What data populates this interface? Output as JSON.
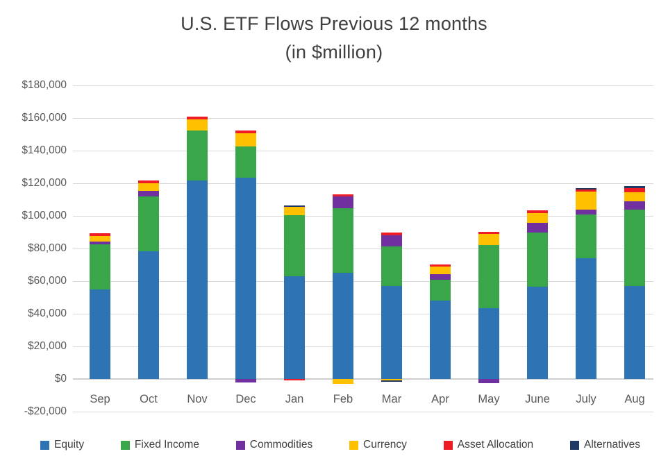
{
  "title": {
    "line1": "U.S. ETF Flows Previous 12 months",
    "line2": "(in $million)"
  },
  "chart_data": {
    "type": "bar",
    "stacked": true,
    "title": "U.S. ETF Flows Previous 12 months (in $million)",
    "categories": [
      "Sep",
      "Oct",
      "Nov",
      "Dec",
      "Jan",
      "Feb",
      "Mar",
      "Apr",
      "May",
      "June",
      "July",
      "Aug"
    ],
    "series": [
      {
        "name": "Equity",
        "color": "#2E74B5",
        "values": [
          55000,
          78300,
          121500,
          123600,
          63000,
          65300,
          57100,
          47900,
          43400,
          56800,
          74000,
          57100
        ]
      },
      {
        "name": "Fixed Income",
        "color": "#38A649",
        "values": [
          27600,
          33500,
          30800,
          19000,
          37400,
          39400,
          24100,
          12600,
          38600,
          33000,
          27000,
          46700
        ]
      },
      {
        "name": "Commodities",
        "color": "#7030A0",
        "values": [
          1700,
          3500,
          0,
          -2000,
          0,
          7100,
          6900,
          3500,
          -2700,
          6100,
          2800,
          5000
        ]
      },
      {
        "name": "Currency",
        "color": "#FFC000",
        "values": [
          3300,
          4700,
          7000,
          8000,
          5100,
          -3100,
          -800,
          4800,
          6600,
          5900,
          11000,
          5700
        ]
      },
      {
        "name": "Asset Allocation",
        "color": "#EE1C25",
        "values": [
          1700,
          1800,
          1800,
          1700,
          -800,
          1400,
          1700,
          1300,
          1200,
          1500,
          1300,
          2400
        ]
      },
      {
        "name": "Alternatives",
        "color": "#1F3864",
        "values": [
          0,
          0,
          0,
          0,
          700,
          0,
          -800,
          0,
          0,
          0,
          1000,
          1100
        ]
      }
    ],
    "ylim": [
      -20000,
      180000
    ],
    "ytick_step": 20000,
    "yticks": [
      {
        "value": 180000,
        "label": "$180,000"
      },
      {
        "value": 160000,
        "label": "$160,000"
      },
      {
        "value": 140000,
        "label": "$140,000"
      },
      {
        "value": 120000,
        "label": "$120,000"
      },
      {
        "value": 100000,
        "label": "$100,000"
      },
      {
        "value": 80000,
        "label": "$80,000"
      },
      {
        "value": 60000,
        "label": "$60,000"
      },
      {
        "value": 40000,
        "label": "$40,000"
      },
      {
        "value": 20000,
        "label": "$20,000"
      },
      {
        "value": 0,
        "label": "$0"
      },
      {
        "value": -20000,
        "label": "-$20,000"
      }
    ],
    "grid": true,
    "legend_position": "bottom"
  }
}
